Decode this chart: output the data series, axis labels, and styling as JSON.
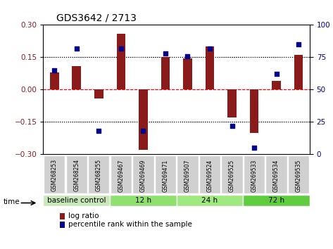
{
  "title": "GDS3642 / 2713",
  "samples": [
    "GSM268253",
    "GSM268254",
    "GSM268255",
    "GSM269467",
    "GSM269469",
    "GSM269471",
    "GSM269507",
    "GSM269524",
    "GSM269525",
    "GSM269533",
    "GSM269534",
    "GSM269535"
  ],
  "log_ratio": [
    0.08,
    0.11,
    -0.04,
    0.26,
    -0.28,
    0.15,
    0.145,
    0.2,
    -0.13,
    -0.2,
    0.04,
    0.16
  ],
  "percentile": [
    65,
    82,
    18,
    82,
    18,
    78,
    76,
    82,
    22,
    5,
    62,
    85
  ],
  "ylim": [
    -0.3,
    0.3
  ],
  "yticks_left": [
    -0.3,
    -0.15,
    0,
    0.15,
    0.3
  ],
  "yticks_right": [
    0,
    25,
    50,
    75,
    100
  ],
  "bar_color": "#8B1A1A",
  "dot_color": "#00008B",
  "groups": [
    {
      "label": "baseline control",
      "start": 0,
      "end": 3,
      "color": "#b0d8a0"
    },
    {
      "label": "12 h",
      "start": 3,
      "end": 6,
      "color": "#90e870"
    },
    {
      "label": "24 h",
      "start": 6,
      "end": 9,
      "color": "#90e870"
    },
    {
      "label": "72 h",
      "start": 9,
      "end": 12,
      "color": "#60d840"
    }
  ],
  "legend_bar_label": "log ratio",
  "legend_dot_label": "percentile rank within the sample",
  "time_label": "time"
}
